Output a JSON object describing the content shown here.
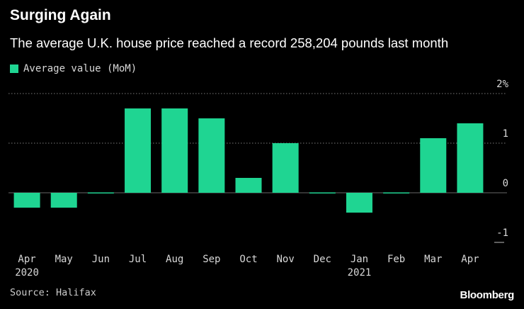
{
  "header": {
    "title": "Surging Again",
    "subtitle": "The average U.K. house price reached a record 258,204 pounds last month"
  },
  "footer": {
    "source": "Source: Halifax",
    "brand": "Bloomberg"
  },
  "colors": {
    "bar": "#1fd592",
    "gridline": "#7a7a7a",
    "zero_line": "#666666",
    "axis_text": "#d8d8d8"
  },
  "chart_data": {
    "type": "bar",
    "title": "Surging Again",
    "subtitle": "The average U.K. house price reached a record 258,204 pounds last month",
    "categories": [
      "Apr",
      "May",
      "Jun",
      "Jul",
      "Aug",
      "Sep",
      "Oct",
      "Nov",
      "Dec",
      "Jan",
      "Feb",
      "Mar",
      "Apr"
    ],
    "year_labels": [
      {
        "category_index": 0,
        "label": "2020"
      },
      {
        "category_index": 9,
        "label": "2021"
      }
    ],
    "series": [
      {
        "name": "Average value (MoM)",
        "values": [
          -0.3,
          -0.3,
          0.0,
          1.7,
          1.7,
          1.5,
          0.3,
          1.0,
          0.0,
          -0.4,
          0.0,
          1.1,
          1.4
        ]
      }
    ],
    "y_ticks": [
      {
        "value": 2,
        "label": "2%"
      },
      {
        "value": 1,
        "label": "1"
      },
      {
        "value": 0,
        "label": "0"
      },
      {
        "value": -1,
        "label": "-1"
      }
    ],
    "ylim": [
      -1,
      2
    ],
    "xlabel": "",
    "ylabel": "",
    "grid": true,
    "legend_position": "top-left",
    "source": "Source: Halifax"
  }
}
